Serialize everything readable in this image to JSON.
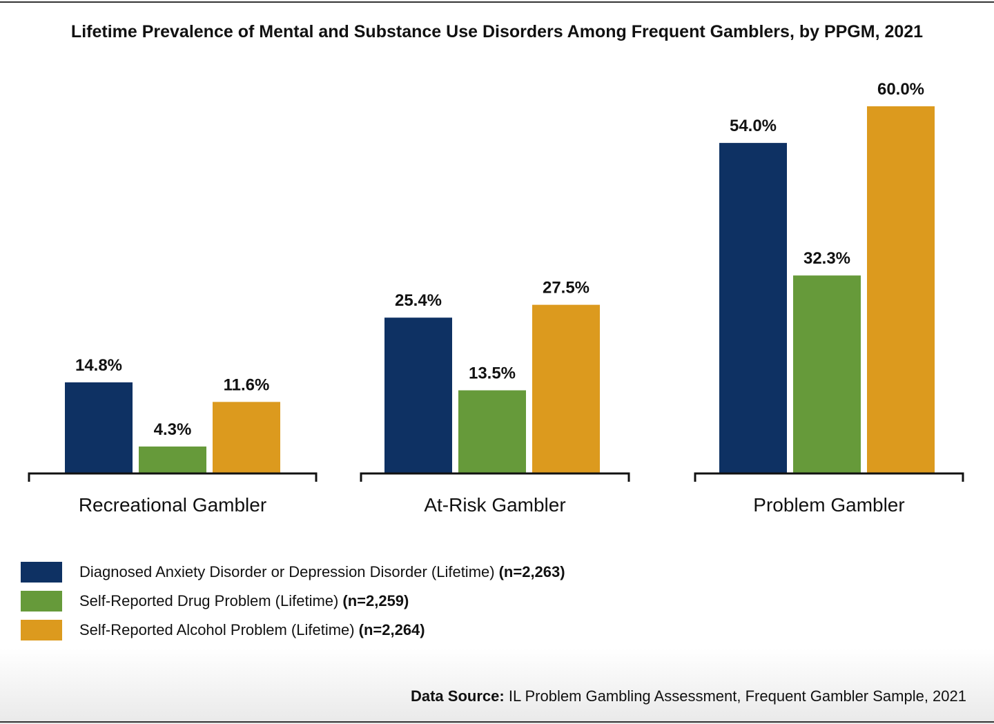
{
  "chart_data": {
    "type": "bar",
    "title": "Lifetime Prevalence of Mental and Substance Use Disorders Among Frequent Gamblers, by PPGM, 2021",
    "categories": [
      "Recreational Gambler",
      "At-Risk Gambler",
      "Problem Gambler"
    ],
    "series": [
      {
        "name": "Diagnosed Anxiety Disorder or Depression Disorder (Lifetime)",
        "n": "(n=2,263)",
        "color": "#0e3163",
        "values": [
          14.8,
          25.4,
          54.0
        ],
        "labels": [
          "14.8%",
          "25.4%",
          "54.0%"
        ]
      },
      {
        "name": "Self-Reported Drug Problem (Lifetime)",
        "n": "(n=2,259)",
        "color": "#669a3a",
        "values": [
          4.3,
          13.5,
          32.3
        ],
        "labels": [
          "4.3%",
          "13.5%",
          "32.3%"
        ]
      },
      {
        "name": "Self-Reported Alcohol Problem (Lifetime)",
        "n": "(n=2,264)",
        "color": "#dc9a1e",
        "values": [
          11.6,
          27.5,
          60.0
        ],
        "labels": [
          "11.6%",
          "27.5%",
          "60.0%"
        ]
      }
    ],
    "unit": "%",
    "ylim": [
      0,
      60
    ],
    "grid": false,
    "legend_placement": "bottom-left"
  },
  "source": {
    "label": "Data Source:",
    "text": "IL Problem Gambling Assessment, Frequent Gambler Sample, 2021"
  }
}
